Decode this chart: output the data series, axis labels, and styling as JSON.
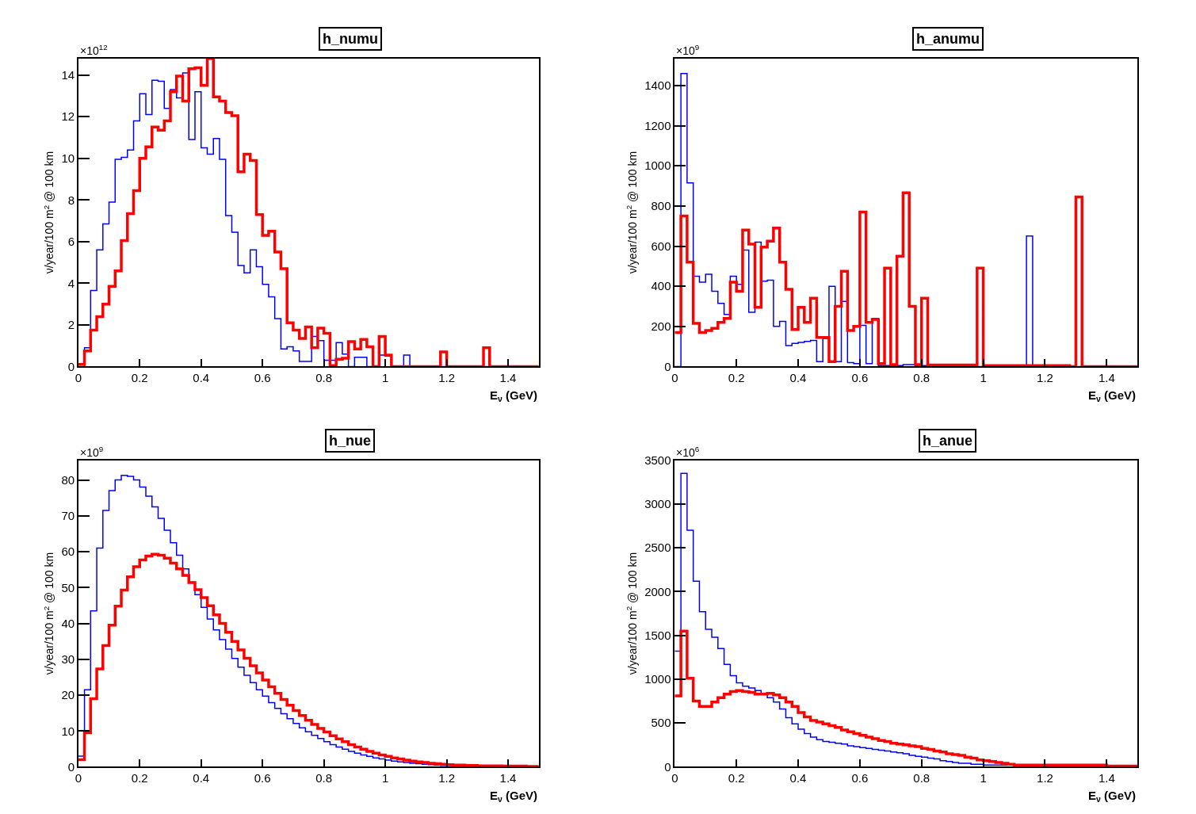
{
  "chart_data": [
    {
      "type": "histogram",
      "title": "h_numu",
      "xlabel": "E$_{ν}$ (GeV)",
      "ylabel": "ν/year/100 m$^{2}$ @ 100 km",
      "annotations": [
        "×10$^{12}$"
      ],
      "bins": [
        0,
        0.02,
        0.04,
        0.06,
        0.08,
        0.1,
        0.12,
        0.14,
        0.16,
        0.18,
        0.2,
        0.22,
        0.24,
        0.26,
        0.28,
        0.3,
        0.32,
        0.34,
        0.36,
        0.38,
        0.4,
        0.42,
        0.44,
        0.46,
        0.48,
        0.5,
        0.52,
        0.54,
        0.56,
        0.58,
        0.6,
        0.62,
        0.64,
        0.66,
        0.68,
        0.7,
        0.72,
        0.74,
        0.76,
        0.78,
        0.8,
        0.82,
        0.84,
        0.86,
        0.88,
        0.9,
        0.92,
        0.94,
        0.96,
        0.98,
        1,
        1.02,
        1.04,
        1.06,
        1.08,
        1.1,
        1.12,
        1.14,
        1.16,
        1.18,
        1.2,
        1.22,
        1.24,
        1.26,
        1.28,
        1.3,
        1.32,
        1.34,
        1.36,
        1.38,
        1.4,
        1.42,
        1.44,
        1.46,
        1.48,
        1.5
      ],
      "series": [
        {
          "color": "#0000ff",
          "values": [
            0,
            0.9,
            3.65,
            5.6,
            6.85,
            7.9,
            9.95,
            10.05,
            10.4,
            11.8,
            13.1,
            12.1,
            13.75,
            13.7,
            12.4,
            13.3,
            12.9,
            14.1,
            10.9,
            13.2,
            10.5,
            10.2,
            10.95,
            9.95,
            7.25,
            6.45,
            4.85,
            4.5,
            5.6,
            4.8,
            3.95,
            3.35,
            2.3,
            0.85,
            0.95,
            0.75,
            0.25,
            0.25,
            1.45,
            1.25,
            0.3,
            0.3,
            1.15,
            0.6,
            0,
            0.45,
            0.45,
            0,
            0,
            0.55,
            0.5,
            0,
            0,
            0.55,
            0,
            0,
            0,
            0,
            0,
            0,
            0,
            0,
            0,
            0,
            0,
            0,
            0,
            0,
            0,
            0,
            0,
            0,
            0,
            0,
            0
          ]
        },
        {
          "color": "#ff0000",
          "values": [
            0.1,
            0.75,
            1.75,
            2.4,
            3.0,
            3.85,
            4.6,
            6.05,
            7.35,
            8.45,
            10.0,
            10.55,
            11.5,
            11.35,
            11.8,
            13.2,
            13.95,
            12.75,
            14.3,
            14.35,
            13.5,
            14.8,
            12.95,
            12.75,
            12.2,
            12.05,
            9.35,
            10.2,
            9.9,
            7.3,
            6.3,
            6.5,
            5.5,
            4.7,
            2.1,
            1.75,
            1.35,
            1.9,
            0.9,
            1.85,
            1.6,
            0.05,
            0.35,
            0.4,
            1.2,
            0.85,
            1.3,
            0.95,
            0,
            1.45,
            0.55,
            0,
            0,
            0,
            0,
            0,
            0,
            0,
            0,
            0.7,
            0,
            0,
            0,
            0,
            0,
            0,
            0.9,
            0,
            0,
            0,
            0,
            0,
            0,
            0,
            0
          ]
        }
      ],
      "xlim": [
        0,
        1.5
      ],
      "xticks": [
        0,
        0.2,
        0.4,
        0.6,
        0.8,
        1,
        1.2,
        1.4
      ],
      "ylim": [
        0,
        14.8
      ],
      "yticks": [
        0,
        2,
        4,
        6,
        8,
        10,
        12,
        14
      ]
    },
    {
      "type": "histogram",
      "title": "h_anumu",
      "xlabel": "E$_{ν}$ (GeV)",
      "ylabel": "ν/year/100 m$^{2}$ @ 100 km",
      "annotations": [
        "×10$^{9}$"
      ],
      "bins": [
        0,
        0.02,
        0.04,
        0.06,
        0.08,
        0.1,
        0.12,
        0.14,
        0.16,
        0.18,
        0.2,
        0.22,
        0.24,
        0.26,
        0.28,
        0.3,
        0.32,
        0.34,
        0.36,
        0.38,
        0.4,
        0.42,
        0.44,
        0.46,
        0.48,
        0.5,
        0.52,
        0.54,
        0.56,
        0.58,
        0.6,
        0.62,
        0.64,
        0.66,
        0.68,
        0.7,
        0.72,
        0.74,
        0.76,
        0.78,
        0.8,
        0.82,
        0.84,
        0.86,
        0.88,
        0.9,
        0.92,
        0.94,
        0.96,
        0.98,
        1,
        1.02,
        1.04,
        1.06,
        1.08,
        1.1,
        1.12,
        1.14,
        1.16,
        1.18,
        1.2,
        1.22,
        1.24,
        1.26,
        1.28,
        1.3,
        1.32,
        1.34,
        1.36,
        1.38,
        1.4,
        1.42,
        1.44,
        1.46,
        1.48,
        1.5
      ],
      "series": [
        {
          "color": "#0000ff",
          "values": [
            0,
            1460,
            915,
            450,
            420,
            460,
            375,
            315,
            260,
            450,
            410,
            580,
            270,
            620,
            425,
            430,
            200,
            225,
            105,
            115,
            120,
            125,
            130,
            25,
            140,
            400,
            25,
            325,
            20,
            15,
            205,
            15,
            240,
            5,
            5,
            5,
            5,
            10,
            10,
            5,
            5,
            5,
            5,
            0,
            0,
            0,
            0,
            0,
            0,
            0,
            0,
            0,
            0,
            0,
            0,
            0,
            0,
            650,
            0,
            0,
            0,
            0,
            0,
            0,
            0,
            0,
            0,
            0,
            0,
            0,
            0,
            0,
            0,
            0,
            0
          ]
        },
        {
          "color": "#ff0000",
          "values": [
            170,
            750,
            520,
            215,
            170,
            180,
            190,
            220,
            240,
            420,
            375,
            680,
            610,
            295,
            595,
            625,
            690,
            520,
            385,
            185,
            295,
            220,
            340,
            145,
            145,
            25,
            300,
            475,
            180,
            200,
            770,
            220,
            235,
            15,
            490,
            10,
            550,
            865,
            300,
            10,
            340,
            8,
            8,
            8,
            8,
            8,
            8,
            8,
            8,
            490,
            5,
            5,
            5,
            5,
            5,
            5,
            5,
            5,
            5,
            5,
            5,
            5,
            5,
            5,
            0,
            845,
            0,
            0,
            0,
            0,
            0,
            0,
            0,
            0,
            0
          ]
        }
      ],
      "xlim": [
        0,
        1.5
      ],
      "xticks": [
        0,
        0.2,
        0.4,
        0.6,
        0.8,
        1,
        1.2,
        1.4
      ],
      "ylim": [
        0,
        1535
      ],
      "yticks": [
        0,
        200,
        400,
        600,
        800,
        1000,
        1200,
        1400
      ]
    },
    {
      "type": "histogram",
      "title": "h_nue",
      "xlabel": "E$_{ν}$ (GeV)",
      "ylabel": "ν/year/100 m$^{2}$ @ 100 km",
      "annotations": [
        "×10$^{9}$"
      ],
      "bins": [
        0,
        0.02,
        0.04,
        0.06,
        0.08,
        0.1,
        0.12,
        0.14,
        0.16,
        0.18,
        0.2,
        0.22,
        0.24,
        0.26,
        0.28,
        0.3,
        0.32,
        0.34,
        0.36,
        0.38,
        0.4,
        0.42,
        0.44,
        0.46,
        0.48,
        0.5,
        0.52,
        0.54,
        0.56,
        0.58,
        0.6,
        0.62,
        0.64,
        0.66,
        0.68,
        0.7,
        0.72,
        0.74,
        0.76,
        0.78,
        0.8,
        0.82,
        0.84,
        0.86,
        0.88,
        0.9,
        0.92,
        0.94,
        0.96,
        0.98,
        1,
        1.02,
        1.04,
        1.06,
        1.08,
        1.1,
        1.12,
        1.14,
        1.16,
        1.18,
        1.2,
        1.22,
        1.24,
        1.26,
        1.28,
        1.3,
        1.32,
        1.34,
        1.36,
        1.38,
        1.4,
        1.42,
        1.44,
        1.46,
        1.48,
        1.5
      ],
      "series": [
        {
          "color": "#0000ff",
          "values": [
            3,
            21.5,
            43.5,
            61,
            71.5,
            77,
            80,
            81.3,
            81,
            80,
            78,
            75.5,
            72.5,
            69.3,
            66,
            62.5,
            59,
            55.2,
            51.5,
            48,
            44.5,
            41.2,
            38.2,
            35.5,
            32.8,
            30.2,
            27.8,
            25.5,
            23.5,
            21.5,
            19.7,
            17.9,
            16.3,
            14.8,
            13.4,
            12.1,
            10.9,
            9.8,
            8.8,
            7.9,
            7.0,
            6.2,
            5.5,
            4.9,
            4.3,
            3.8,
            3.3,
            2.9,
            2.5,
            2.2,
            1.9,
            1.6,
            1.4,
            1.2,
            1.0,
            0.9,
            0.7,
            0.6,
            0.5,
            0.4,
            0.4,
            0.3,
            0.3,
            0.2,
            0.2,
            0.1,
            0.1,
            0.1,
            0.1,
            0.1,
            0.1,
            0.1,
            0.1,
            0.1,
            0.1
          ]
        },
        {
          "color": "#ff0000",
          "values": [
            2,
            9.5,
            19,
            27.3,
            33.8,
            39.5,
            44.8,
            49.3,
            53,
            55.8,
            57.7,
            58.8,
            59.3,
            59,
            58.2,
            56.8,
            55.2,
            53.4,
            51.4,
            49.4,
            47.2,
            44.9,
            42.4,
            40,
            37.5,
            35,
            32.6,
            30.3,
            28.2,
            26.2,
            24.2,
            22.3,
            20.5,
            18.8,
            17.2,
            15.7,
            14.3,
            13,
            11.8,
            10.7,
            9.7,
            8.7,
            7.8,
            7,
            6.2,
            5.5,
            4.9,
            4.3,
            3.8,
            3.3,
            2.9,
            2.5,
            2.2,
            1.9,
            1.6,
            1.4,
            1.2,
            1.0,
            0.9,
            0.7,
            0.6,
            0.5,
            0.5,
            0.4,
            0.4,
            0.3,
            0.3,
            0.3,
            0.3,
            0.2,
            0.2,
            0.2,
            0.2,
            0.1,
            0.1
          ]
        }
      ],
      "xlim": [
        0,
        1.5
      ],
      "xticks": [
        0,
        0.2,
        0.4,
        0.6,
        0.8,
        1,
        1.2,
        1.4
      ],
      "ylim": [
        0,
        85.5
      ],
      "yticks": [
        0,
        10,
        20,
        30,
        40,
        50,
        60,
        70,
        80
      ]
    },
    {
      "type": "histogram",
      "title": "h_anue",
      "xlabel": "E$_{ν}$ (GeV)",
      "ylabel": "ν/year/100 m$^{2}$ @ 100 km",
      "annotations": [
        "×10$^{6}$"
      ],
      "bins": [
        0,
        0.02,
        0.04,
        0.06,
        0.08,
        0.1,
        0.12,
        0.14,
        0.16,
        0.18,
        0.2,
        0.22,
        0.24,
        0.26,
        0.28,
        0.3,
        0.32,
        0.34,
        0.36,
        0.38,
        0.4,
        0.42,
        0.44,
        0.46,
        0.48,
        0.5,
        0.52,
        0.54,
        0.56,
        0.58,
        0.6,
        0.62,
        0.64,
        0.66,
        0.68,
        0.7,
        0.72,
        0.74,
        0.76,
        0.78,
        0.8,
        0.82,
        0.84,
        0.86,
        0.88,
        0.9,
        0.92,
        0.94,
        0.96,
        0.98,
        1,
        1.02,
        1.04,
        1.06,
        1.08,
        1.1,
        1.12,
        1.14,
        1.16,
        1.18,
        1.2,
        1.22,
        1.24,
        1.26,
        1.28,
        1.3,
        1.32,
        1.34,
        1.36,
        1.38,
        1.4,
        1.42,
        1.44,
        1.46,
        1.48,
        1.5
      ],
      "series": [
        {
          "color": "#0000ff",
          "values": [
            1320,
            3350,
            2700,
            2120,
            1770,
            1570,
            1480,
            1350,
            1170,
            1040,
            960,
            920,
            900,
            870,
            830,
            790,
            740,
            660,
            560,
            490,
            430,
            380,
            340,
            310,
            290,
            280,
            270,
            260,
            240,
            230,
            220,
            210,
            200,
            190,
            180,
            170,
            160,
            150,
            130,
            120,
            110,
            100,
            90,
            70,
            60,
            50,
            40,
            40,
            30,
            30,
            20,
            20,
            20,
            20,
            20,
            10,
            10,
            10,
            10,
            10,
            0,
            0,
            0,
            0,
            0,
            0,
            0,
            0,
            0,
            0,
            0,
            0,
            0,
            0,
            0
          ]
        },
        {
          "color": "#ff0000",
          "values": [
            810,
            1550,
            1010,
            750,
            690,
            690,
            740,
            790,
            830,
            860,
            870,
            860,
            850,
            830,
            830,
            840,
            820,
            790,
            740,
            690,
            620,
            570,
            530,
            510,
            490,
            470,
            450,
            420,
            400,
            380,
            360,
            340,
            320,
            300,
            290,
            270,
            260,
            250,
            240,
            230,
            210,
            200,
            180,
            170,
            150,
            140,
            130,
            110,
            100,
            80,
            70,
            60,
            50,
            40,
            30,
            20,
            20,
            20,
            20,
            20,
            20,
            20,
            20,
            20,
            20,
            20,
            20,
            20,
            20,
            20,
            10,
            10,
            10,
            10,
            10
          ]
        }
      ],
      "xlim": [
        0,
        1.5
      ],
      "xticks": [
        0,
        0.2,
        0.4,
        0.6,
        0.8,
        1,
        1.2,
        1.4
      ],
      "ylim": [
        0,
        3500
      ],
      "yticks": [
        0,
        500,
        1000,
        1500,
        2000,
        2500,
        3000,
        3500
      ]
    }
  ]
}
